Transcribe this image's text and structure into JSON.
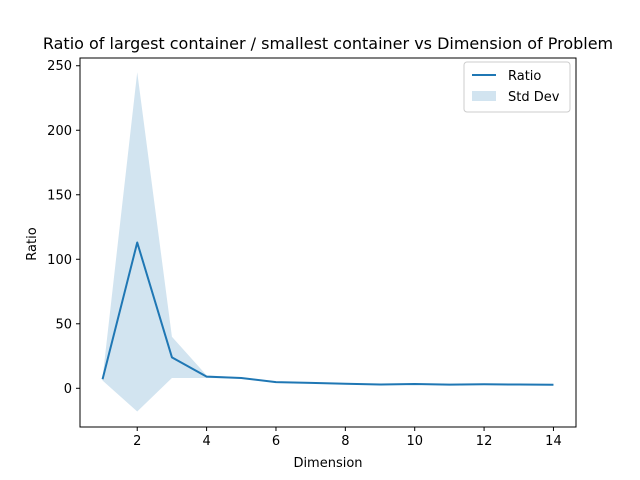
{
  "chart_data": {
    "type": "line",
    "title": "Ratio of largest container / smallest container vs Dimension of Problem",
    "xlabel": "Dimension",
    "ylabel": "Ratio",
    "xlim": [
      0.35,
      14.65
    ],
    "ylim": [
      -30,
      256
    ],
    "xticks": [
      2,
      4,
      6,
      8,
      10,
      12,
      14
    ],
    "yticks": [
      0,
      50,
      100,
      150,
      200,
      250
    ],
    "legend_placement": "top-right",
    "grid": false,
    "line_color": "#1f77b4",
    "band_color": "#1f77b4",
    "series": [
      {
        "name": "Ratio",
        "x": [
          1,
          2,
          3,
          4,
          5,
          6,
          7,
          8,
          9,
          10,
          11,
          12,
          13,
          14
        ],
        "y": [
          7,
          113,
          24,
          9,
          8,
          4.8,
          4.2,
          3.5,
          2.9,
          3.3,
          2.8,
          3.1,
          2.9,
          2.7
        ]
      }
    ],
    "band": {
      "name": "Std Dev",
      "x": [
        1,
        2,
        3,
        4,
        5,
        6,
        7,
        8,
        9,
        10,
        11,
        12,
        13,
        14
      ],
      "upper": [
        8,
        245,
        40,
        10,
        8.5,
        5.2,
        4.5,
        3.8,
        3.1,
        3.5,
        3.0,
        3.3,
        3.1,
        2.9
      ],
      "lower": [
        6,
        -18,
        8,
        8,
        7.5,
        4.4,
        3.9,
        3.2,
        2.7,
        3.1,
        2.6,
        2.9,
        2.7,
        2.5
      ]
    }
  }
}
